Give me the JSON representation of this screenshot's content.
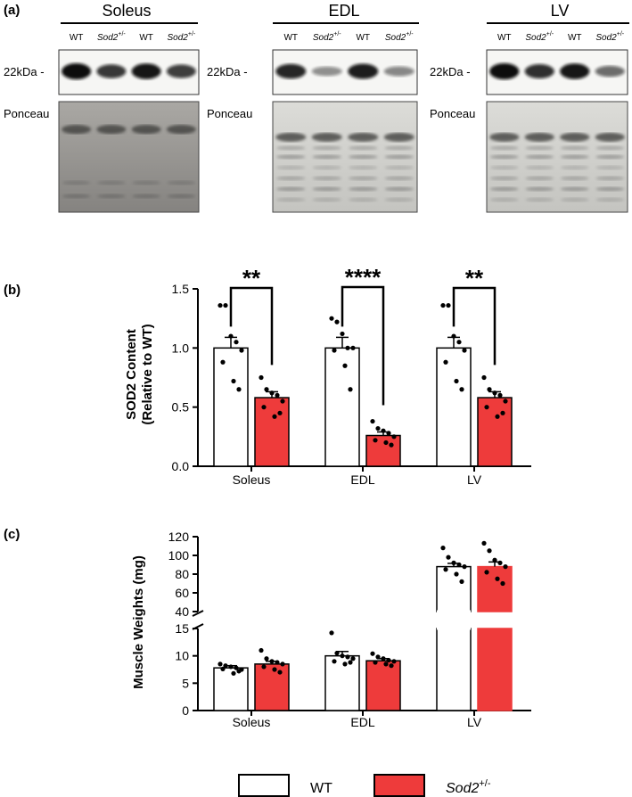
{
  "panel_a": {
    "label": "(a)",
    "blots": [
      {
        "title": "Soleus",
        "lanes": [
          "WT",
          "Sod2",
          "WT",
          "Sod2"
        ],
        "band_label": "22kDa -",
        "loading_label": "Ponceau",
        "band_intensity": [
          1.0,
          0.75,
          0.95,
          0.72
        ]
      },
      {
        "title": "EDL",
        "lanes": [
          "WT",
          "Sod2",
          "WT",
          "Sod2"
        ],
        "band_label": "22kDa -",
        "loading_label": "Ponceau",
        "band_intensity": [
          0.85,
          0.25,
          0.9,
          0.3
        ]
      },
      {
        "title": "LV",
        "lanes": [
          "WT",
          "Sod2",
          "WT",
          "Sod2"
        ],
        "band_label": "22kDa -",
        "loading_label": "Ponceau",
        "band_intensity": [
          1.0,
          0.8,
          0.95,
          0.45
        ]
      }
    ],
    "sup": "+/-"
  },
  "chart_data": [
    {
      "type": "bar",
      "panel_label": "(b)",
      "categories": [
        "Soleus",
        "EDL",
        "LV"
      ],
      "ylabel_line1": "SOD2 Content",
      "ylabel_line2": "(Relative to WT)",
      "ylim": [
        0,
        1.5
      ],
      "yticks": [
        0.0,
        0.5,
        1.0,
        1.5
      ],
      "ytick_labels": [
        "0.0",
        "0.5",
        "1.0",
        "1.5"
      ],
      "series": [
        {
          "name": "WT",
          "values": [
            1.0,
            1.0,
            1.0
          ],
          "sem": [
            0.09,
            0.09,
            0.09
          ],
          "points": [
            [
              1.36,
              1.36,
              1.1,
              1.05,
              0.98,
              0.88,
              0.72,
              0.65
            ],
            [
              1.25,
              1.22,
              1.12,
              1.0,
              1.0,
              0.98,
              0.85,
              0.65
            ],
            [
              1.36,
              1.36,
              1.1,
              1.05,
              0.98,
              0.88,
              0.72,
              0.65
            ]
          ]
        },
        {
          "name": "Sod2+/-",
          "values": [
            0.58,
            0.26,
            0.58
          ],
          "sem": [
            0.05,
            0.03,
            0.05
          ],
          "points": [
            [
              0.75,
              0.65,
              0.62,
              0.6,
              0.55,
              0.5,
              0.42,
              0.45
            ],
            [
              0.38,
              0.32,
              0.3,
              0.28,
              0.25,
              0.22,
              0.2,
              0.18
            ],
            [
              0.75,
              0.65,
              0.62,
              0.6,
              0.55,
              0.5,
              0.42,
              0.45
            ]
          ]
        }
      ],
      "significance": [
        "**",
        "****",
        "**"
      ]
    },
    {
      "type": "bar",
      "panel_label": "(c)",
      "categories": [
        "Soleus",
        "EDL",
        "LV"
      ],
      "ylabel": "Muscle Weights (mg)",
      "broken_axis": {
        "lower": [
          0,
          15
        ],
        "upper": [
          40,
          120
        ]
      },
      "lower_ticks": [
        0,
        5,
        10,
        15
      ],
      "lower_tick_labels": [
        "0",
        "5",
        "10",
        "15"
      ],
      "upper_ticks": [
        40,
        60,
        80,
        100,
        120
      ],
      "upper_tick_labels": [
        "40",
        "60",
        "80",
        "100",
        "120"
      ],
      "series": [
        {
          "name": "WT",
          "values": [
            7.8,
            10.0,
            88.0
          ],
          "sem": [
            0.4,
            0.8,
            3.5
          ],
          "points": [
            [
              8.5,
              8.2,
              8.0,
              7.8,
              7.5,
              7.6,
              6.8,
              7.2
            ],
            [
              14.2,
              10.5,
              10.0,
              9.8,
              9.5,
              9.0,
              8.5,
              8.8
            ],
            [
              108,
              98,
              92,
              90,
              88,
              85,
              80,
              72
            ]
          ]
        },
        {
          "name": "Sod2+/-",
          "values": [
            8.5,
            9.1,
            88.0
          ],
          "sem": [
            0.5,
            0.4,
            5.0
          ],
          "points": [
            [
              11.0,
              9.5,
              9.0,
              8.8,
              8.5,
              8.0,
              7.5,
              7.0
            ],
            [
              10.4,
              9.8,
              9.5,
              9.2,
              9.0,
              8.8,
              8.5,
              8.2
            ],
            [
              113,
              105,
              95,
              92,
              88,
              82,
              75,
              70
            ]
          ]
        }
      ]
    }
  ],
  "legend": {
    "wt_label": "WT",
    "sod2_label": "Sod2",
    "sod2_sup": "+/-"
  },
  "colors": {
    "wt_fill": "#ffffff",
    "sod2_fill": "#ee3b3b",
    "axis": "#000000"
  }
}
